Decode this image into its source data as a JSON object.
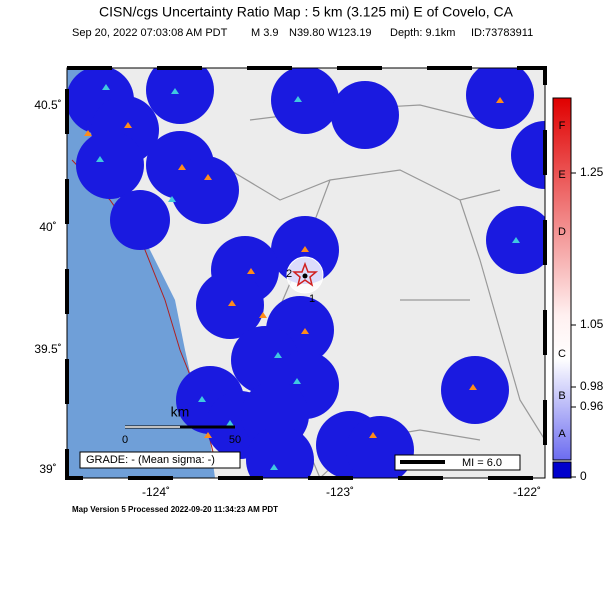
{
  "header": {
    "title": "CISN/cgs Uncertainty Ratio Map : 5 km (3.125 mi) E of Covelo, CA",
    "details": [
      "Sep 20, 2022 07:03:08 AM PDT",
      "M 3.9",
      "N39.80 W123.19",
      "Depth: 9.1km",
      "ID:73783911"
    ]
  },
  "map": {
    "lat_labels": [
      "40.5˚",
      "40˚",
      "39.5˚",
      "39˚"
    ],
    "lon_labels": [
      "-124˚",
      "-123˚",
      "-122˚"
    ],
    "scale_bar": {
      "unit": "km",
      "labels": [
        "0",
        "50"
      ]
    },
    "contour_labels": [
      "1",
      "2"
    ],
    "grade": "GRADE: - (Mean sigma: -)",
    "mi_label": "MI = 6.0"
  },
  "colorbar": {
    "value_labels": [
      "1.25",
      "1.05",
      "0.98",
      "0.96",
      "0"
    ],
    "grade_letters": [
      "F",
      "E",
      "D",
      "C",
      "B",
      "A"
    ]
  },
  "footer": "Map Version 5 Processed 2022-09-20 11:34:23 AM PDT"
}
